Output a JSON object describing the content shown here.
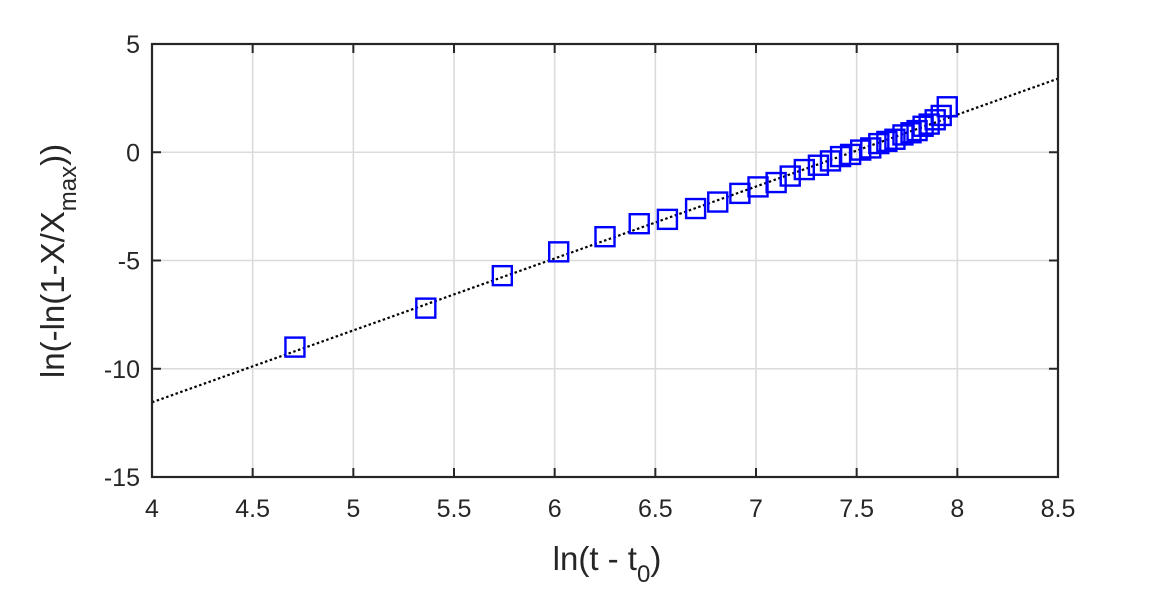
{
  "chart_data": {
    "type": "scatter",
    "xlabel": {
      "base": "ln(t - t",
      "sub": "0",
      "tail": ")"
    },
    "ylabel": {
      "base": "ln(-ln(1-X/X",
      "sub": "max",
      "tail": "))"
    },
    "xlim": [
      4,
      8.5
    ],
    "ylim": [
      -15,
      5
    ],
    "xticks": [
      4,
      4.5,
      5,
      5.5,
      6,
      6.5,
      7,
      7.5,
      8,
      8.5
    ],
    "yticks": [
      -15,
      -10,
      -5,
      0,
      5
    ],
    "xtick_labels": [
      "4",
      "4.5",
      "5",
      "5.5",
      "6",
      "6.5",
      "7",
      "7.5",
      "8",
      "8.5"
    ],
    "ytick_labels": [
      "-15",
      "-10",
      "-5",
      "0",
      "5"
    ],
    "grid": true,
    "marker_color": "#0000ff",
    "line_color": "#000000",
    "axis_color": "#262626",
    "grid_color": "#dbdbdb",
    "series": [
      {
        "marker": "square",
        "x": [
          4.71,
          5.36,
          5.74,
          6.02,
          6.25,
          6.42,
          6.56,
          6.7,
          6.81,
          6.92,
          7.01,
          7.1,
          7.17,
          7.24,
          7.31,
          7.37,
          7.42,
          7.47,
          7.52,
          7.57,
          7.61,
          7.65,
          7.69,
          7.73,
          7.77,
          7.8,
          7.83,
          7.86,
          7.89,
          7.92,
          7.95
        ],
        "y": [
          -9.0,
          -7.2,
          -5.7,
          -4.6,
          -3.9,
          -3.3,
          -3.1,
          -2.6,
          -2.3,
          -1.9,
          -1.6,
          -1.4,
          -1.1,
          -0.8,
          -0.6,
          -0.4,
          -0.2,
          -0.1,
          0.1,
          0.2,
          0.4,
          0.5,
          0.6,
          0.8,
          0.9,
          1.0,
          1.2,
          1.3,
          1.5,
          1.7,
          2.1
        ]
      },
      {
        "style": "dotted-line",
        "x": [
          4.0,
          8.5
        ],
        "y": [
          -11.55,
          3.4
        ]
      }
    ]
  }
}
